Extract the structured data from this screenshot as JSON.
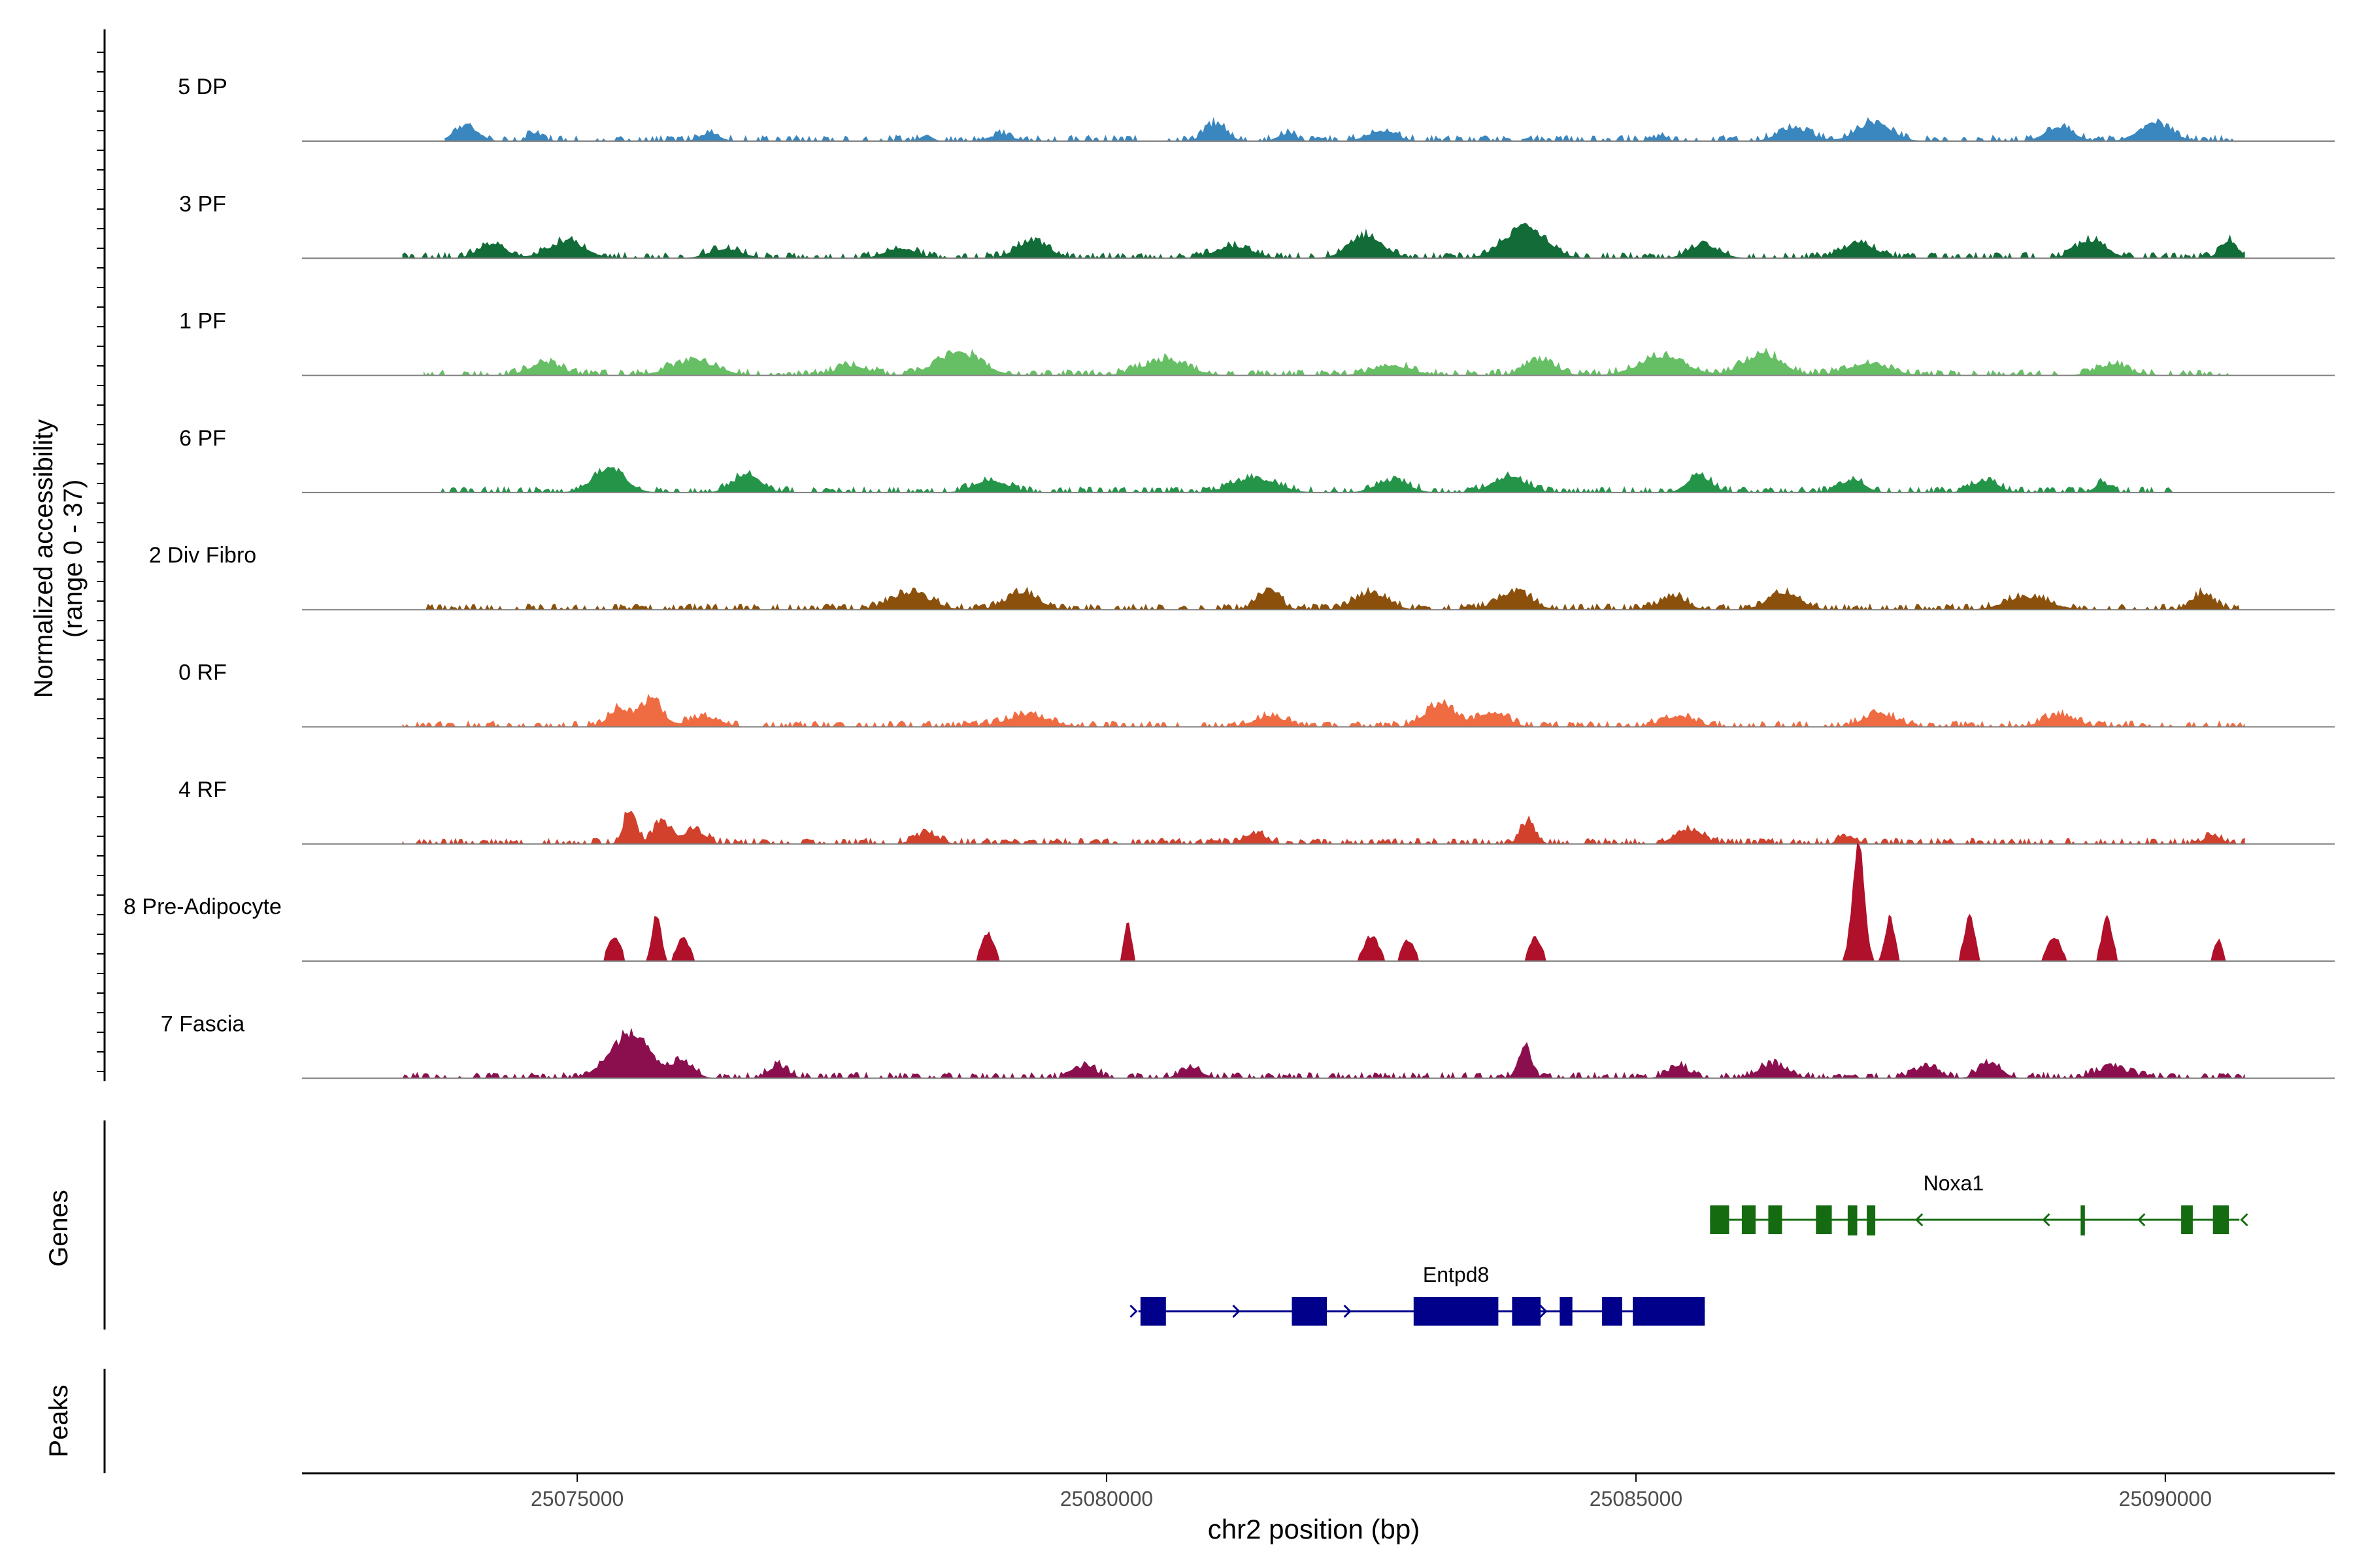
{
  "chart_data": {
    "type": "area",
    "title": "",
    "xlabel": "chr2 position (bp)",
    "ylabel_line1": "Normalized accessibility",
    "ylabel_line2": "(range 0 - 37)",
    "xlim": [
      25072400,
      25091600
    ],
    "x_ticks": [
      25075000,
      25080000,
      25085000,
      25090000
    ],
    "x_tick_labels": [
      "25075000",
      "25080000",
      "25085000",
      "25090000"
    ],
    "ylim": [
      0,
      37
    ],
    "gene_track_label": "Genes",
    "peak_track_label": "Peaks",
    "series": [
      {
        "name": "5 DP",
        "color": "#3a87c0",
        "start": 25073750,
        "end": 25090650,
        "peaks": [
          [
            25073950,
            3.8,
            220
          ],
          [
            25074600,
            2.0,
            120
          ],
          [
            25076250,
            2.0,
            180
          ],
          [
            25078300,
            1.5,
            110
          ],
          [
            25079000,
            1.6,
            220
          ],
          [
            25081030,
            4.2,
            200
          ],
          [
            25081700,
            1.8,
            160
          ],
          [
            25082600,
            2.6,
            260
          ],
          [
            25085250,
            1.3,
            100
          ],
          [
            25086500,
            3.1,
            300
          ],
          [
            25087250,
            4.6,
            320
          ],
          [
            25089000,
            3.5,
            260
          ],
          [
            25089900,
            4.4,
            300
          ]
        ]
      },
      {
        "name": "3 PF",
        "color": "#116c37",
        "start": 25073350,
        "end": 25090750,
        "peaks": [
          [
            25074200,
            3.6,
            260
          ],
          [
            25074900,
            4.3,
            340
          ],
          [
            25076400,
            2.3,
            300
          ],
          [
            25078050,
            2.6,
            280
          ],
          [
            25079300,
            4.2,
            300
          ],
          [
            25081200,
            3.0,
            340
          ],
          [
            25082450,
            5.6,
            320
          ],
          [
            25083950,
            8.0,
            380
          ],
          [
            25085650,
            3.3,
            280
          ],
          [
            25087100,
            3.8,
            300
          ],
          [
            25089300,
            4.6,
            280
          ],
          [
            25090600,
            4.6,
            160
          ]
        ]
      },
      {
        "name": "1 PF",
        "color": "#66bf64",
        "start": 25073550,
        "end": 25090600,
        "peaks": [
          [
            25074700,
            3.2,
            300
          ],
          [
            25076100,
            3.6,
            420
          ],
          [
            25077600,
            2.3,
            300
          ],
          [
            25078600,
            5.6,
            420
          ],
          [
            25080550,
            3.8,
            420
          ],
          [
            25082700,
            2.5,
            360
          ],
          [
            25084100,
            3.8,
            280
          ],
          [
            25085250,
            4.6,
            440
          ],
          [
            25086200,
            5.3,
            360
          ],
          [
            25087200,
            2.8,
            400
          ],
          [
            25089500,
            2.6,
            300
          ]
        ]
      },
      {
        "name": "6 PF",
        "color": "#249449",
        "start": 25073550,
        "end": 25090100,
        "peaks": [
          [
            25075300,
            6.2,
            300
          ],
          [
            25076600,
            4.6,
            260
          ],
          [
            25078900,
            3.2,
            300
          ],
          [
            25081400,
            3.6,
            400
          ],
          [
            25082700,
            3.0,
            300
          ],
          [
            25083800,
            3.8,
            320
          ],
          [
            25085600,
            4.2,
            220
          ],
          [
            25087050,
            3.3,
            220
          ],
          [
            25088300,
            3.0,
            240
          ],
          [
            25089400,
            2.5,
            120
          ]
        ]
      },
      {
        "name": "2 Div Fibro",
        "color": "#8b510c",
        "start": 25073550,
        "end": 25090700,
        "peaks": [
          [
            25078150,
            4.3,
            360
          ],
          [
            25079200,
            4.3,
            300
          ],
          [
            25081530,
            5.2,
            200
          ],
          [
            25082500,
            4.2,
            300
          ],
          [
            25083850,
            4.6,
            300
          ],
          [
            25085350,
            3.3,
            240
          ],
          [
            25086400,
            4.2,
            300
          ],
          [
            25088700,
            3.2,
            400
          ],
          [
            25090350,
            3.8,
            200
          ]
        ]
      },
      {
        "name": "0 RF",
        "color": "#ef6c43",
        "start": 25073350,
        "end": 25090750,
        "peaks": [
          [
            25075700,
            7.0,
            200
          ],
          [
            25075400,
            4.5,
            200
          ],
          [
            25076200,
            2.4,
            300
          ],
          [
            25079250,
            2.8,
            400
          ],
          [
            25081550,
            2.6,
            300
          ],
          [
            25083150,
            5.6,
            280
          ],
          [
            25083650,
            3.6,
            260
          ],
          [
            25085400,
            2.6,
            300
          ],
          [
            25087300,
            3.2,
            300
          ],
          [
            25089000,
            2.8,
            300
          ]
        ]
      },
      {
        "name": "4 RF",
        "color": "#d1412c",
        "start": 25073350,
        "end": 25090750,
        "peaks": [
          [
            25075500,
            9.0,
            120
          ],
          [
            25075800,
            5.8,
            150
          ],
          [
            25076100,
            3.6,
            200
          ],
          [
            25078300,
            2.5,
            220
          ],
          [
            25081400,
            2.6,
            200
          ],
          [
            25083980,
            5.6,
            140
          ],
          [
            25085500,
            3.6,
            250
          ],
          [
            25087000,
            2.0,
            150
          ],
          [
            25090450,
            2.2,
            150
          ]
        ]
      },
      {
        "name": "8 Pre-Adipocyte",
        "color": "#b0102a",
        "start": 25073350,
        "end": 25090750,
        "peaks": [
          [
            25075350,
            6.0,
            120
          ],
          [
            25075750,
            12.0,
            80
          ],
          [
            25076000,
            6.0,
            120
          ],
          [
            25078880,
            7.0,
            120
          ],
          [
            25080200,
            10.0,
            70
          ],
          [
            25082500,
            6.5,
            140
          ],
          [
            25082850,
            5.5,
            120
          ],
          [
            25084050,
            6.0,
            120
          ],
          [
            25087100,
            29.0,
            110
          ],
          [
            25087400,
            11.0,
            90
          ],
          [
            25088150,
            11.0,
            100
          ],
          [
            25088950,
            6.5,
            120
          ],
          [
            25089450,
            11.0,
            100
          ],
          [
            25090500,
            5.6,
            80
          ]
        ]
      },
      {
        "name": "7 Fascia",
        "color": "#8b0f4e",
        "start": 25073350,
        "end": 25090750,
        "peaks": [
          [
            25075500,
            11.0,
            380
          ],
          [
            25076000,
            4.0,
            200
          ],
          [
            25076900,
            3.2,
            180
          ],
          [
            25079800,
            3.0,
            200
          ],
          [
            25080800,
            2.5,
            200
          ],
          [
            25083950,
            8.0,
            120
          ],
          [
            25085400,
            3.0,
            200
          ],
          [
            25086300,
            3.5,
            260
          ],
          [
            25087750,
            3.0,
            220
          ],
          [
            25088350,
            4.0,
            200
          ],
          [
            25089500,
            2.6,
            300
          ]
        ]
      }
    ],
    "genes": [
      {
        "name": "Noxa1",
        "color": "#156b10",
        "strand": "-",
        "start": 25085700,
        "end": 25090700,
        "exons": [
          [
            25085700,
            25085880
          ],
          [
            25086000,
            25086130
          ],
          [
            25086250,
            25086380
          ],
          [
            25086700,
            25086850
          ],
          [
            25087000,
            25087090
          ],
          [
            25087180,
            25087260
          ],
          [
            25089200,
            25089240
          ],
          [
            25090150,
            25090260
          ],
          [
            25090450,
            25090600
          ]
        ],
        "arrows": [
          25087650,
          25088850,
          25089750,
          25090720
        ]
      },
      {
        "name": "Entpd8",
        "color": "#00008b",
        "strand": "+",
        "start": 25080300,
        "end": 25085650,
        "exons": [
          [
            25080320,
            25080560
          ],
          [
            25081750,
            25082080
          ],
          [
            25082900,
            25083700
          ],
          [
            25083830,
            25084100
          ],
          [
            25084280,
            25084400
          ],
          [
            25084680,
            25084870
          ],
          [
            25084970,
            25085650
          ]
        ],
        "arrows": [
          25081250,
          25082300,
          25084150,
          25080280
        ]
      }
    ]
  }
}
